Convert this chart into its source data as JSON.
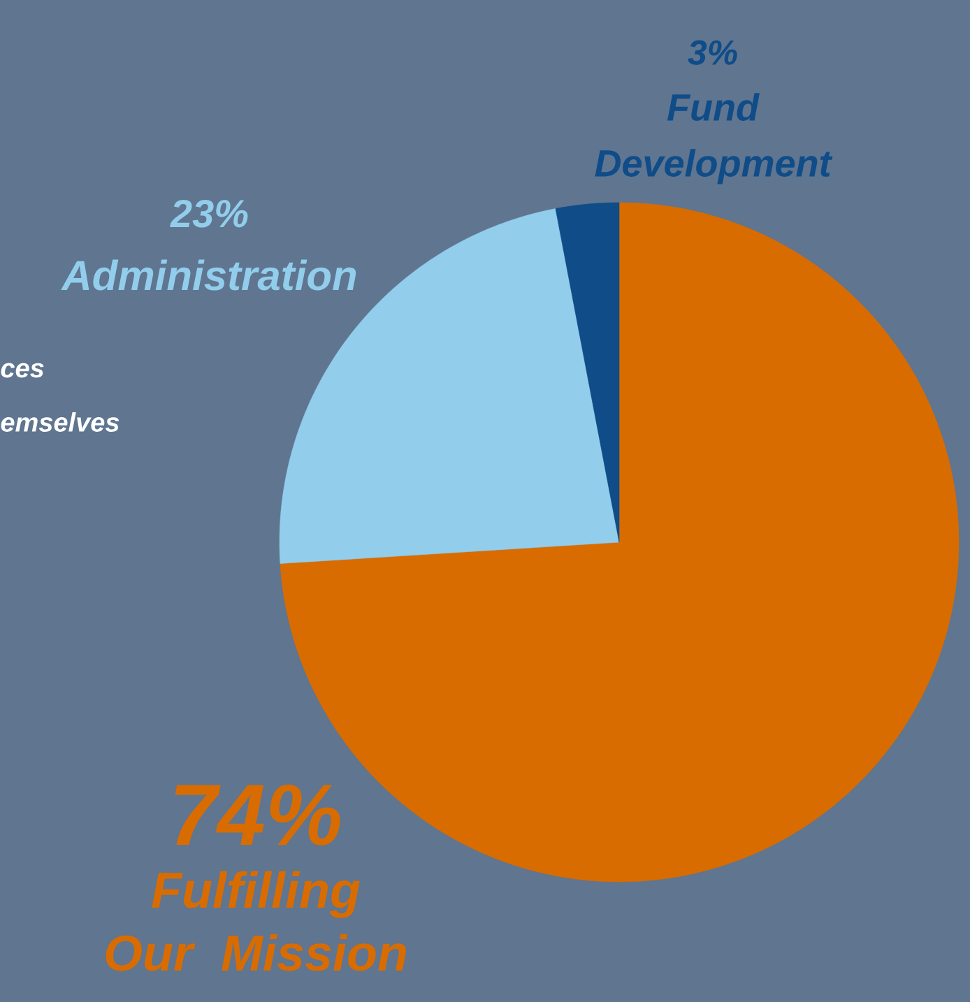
{
  "chart_data": {
    "type": "pie",
    "categories": [
      "Fulfilling Our Mission",
      "Administration",
      "Fund Development"
    ],
    "values": [
      74,
      23,
      3
    ],
    "value_labels": [
      "74%",
      "23%",
      "3%"
    ],
    "colors": [
      "#d96c00",
      "#92cdec",
      "#0f4c88"
    ],
    "annotations": [
      "ces",
      "emselves"
    ]
  }
}
